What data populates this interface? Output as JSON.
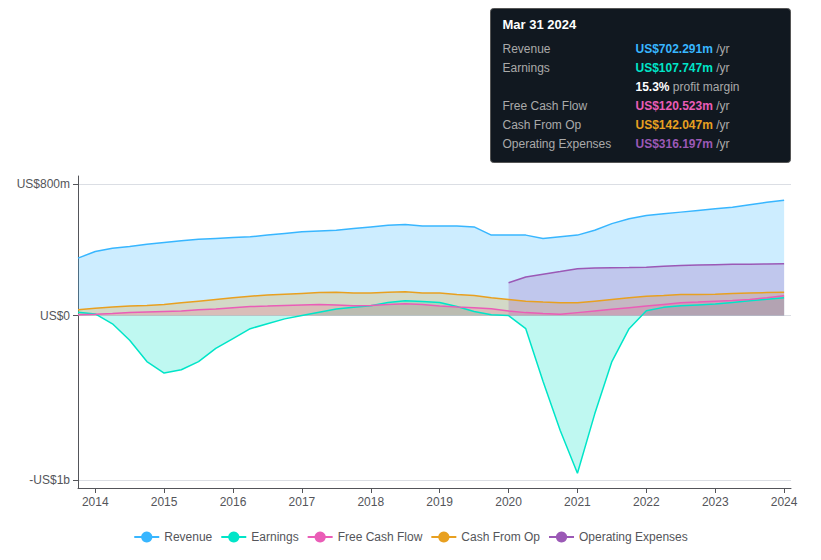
{
  "chart_data": {
    "type": "area",
    "x": [
      2013.75,
      2014.0,
      2014.25,
      2014.5,
      2014.75,
      2015.0,
      2015.25,
      2015.5,
      2015.75,
      2016.0,
      2016.25,
      2016.5,
      2016.75,
      2017.0,
      2017.25,
      2017.5,
      2017.75,
      2018.0,
      2018.25,
      2018.5,
      2018.75,
      2019.0,
      2019.25,
      2019.5,
      2019.75,
      2020.0,
      2020.25,
      2020.5,
      2020.75,
      2021.0,
      2021.25,
      2021.5,
      2021.75,
      2022.0,
      2022.25,
      2022.5,
      2022.75,
      2023.0,
      2023.25,
      2023.5,
      2023.75,
      2024.0
    ],
    "series": [
      {
        "name": "Revenue",
        "color": "#38b6ff",
        "values": [
          350,
          390,
          410,
          420,
          435,
          445,
          455,
          465,
          470,
          475,
          480,
          490,
          500,
          510,
          515,
          520,
          530,
          540,
          550,
          555,
          545,
          545,
          545,
          540,
          490,
          490,
          490,
          470,
          480,
          490,
          520,
          560,
          590,
          610,
          620,
          630,
          640,
          650,
          660,
          675,
          690,
          702
        ]
      },
      {
        "name": "Earnings",
        "color": "#00e5c8",
        "values": [
          20,
          10,
          -50,
          -150,
          -280,
          -350,
          -330,
          -280,
          -200,
          -140,
          -80,
          -50,
          -20,
          0,
          20,
          40,
          50,
          60,
          80,
          90,
          85,
          80,
          55,
          25,
          5,
          0,
          -80,
          -400,
          -700,
          -960,
          -600,
          -280,
          -80,
          30,
          50,
          60,
          65,
          70,
          80,
          90,
          100,
          108
        ]
      },
      {
        "name": "Free Cash Flow",
        "color": "#ea5db7",
        "values": [
          5,
          8,
          12,
          18,
          22,
          25,
          28,
          35,
          40,
          48,
          55,
          58,
          62,
          65,
          68,
          65,
          60,
          62,
          68,
          72,
          68,
          58,
          52,
          48,
          42,
          28,
          18,
          12,
          8,
          18,
          28,
          38,
          48,
          58,
          68,
          78,
          82,
          88,
          92,
          98,
          108,
          121
        ]
      },
      {
        "name": "Cash From Op",
        "color": "#e8a020",
        "values": [
          35,
          45,
          52,
          58,
          62,
          68,
          78,
          88,
          98,
          108,
          118,
          125,
          130,
          135,
          140,
          142,
          138,
          138,
          142,
          145,
          138,
          138,
          128,
          122,
          108,
          98,
          88,
          82,
          78,
          78,
          88,
          98,
          108,
          118,
          122,
          128,
          128,
          130,
          135,
          138,
          140,
          142
        ]
      },
      {
        "name": "Operating Expenses",
        "color": "#9b59b6",
        "values": [
          null,
          null,
          null,
          null,
          null,
          null,
          null,
          null,
          null,
          null,
          null,
          null,
          null,
          null,
          null,
          null,
          null,
          null,
          null,
          null,
          null,
          null,
          null,
          null,
          null,
          200,
          235,
          252,
          268,
          285,
          290,
          292,
          293,
          295,
          300,
          305,
          308,
          310,
          312,
          313,
          314,
          316
        ]
      }
    ],
    "xlim": [
      2013.75,
      2024.1
    ],
    "xticks": [
      2014,
      2015,
      2016,
      2017,
      2018,
      2019,
      2020,
      2021,
      2022,
      2023,
      2024
    ],
    "ylim": [
      -1050,
      850
    ],
    "yticks": [
      {
        "value": 800,
        "label": "US$800m"
      },
      {
        "value": 0,
        "label": "US$0"
      },
      {
        "value": -1000,
        "label": "-US$1b"
      }
    ],
    "grid": true,
    "legend": "bottom",
    "annotations": [
      {
        "text": "Mar 31 2024"
      },
      {
        "label": "Revenue",
        "text": "US$702.291m",
        "suffix": " /yr",
        "color": "#38b6ff"
      },
      {
        "label": "Earnings",
        "text": "US$107.747m",
        "suffix": " /yr",
        "color": "#00e5c8"
      },
      {
        "text": "15.3%",
        "suffix": " profit margin",
        "color": "#ffffff"
      },
      {
        "label": "Free Cash Flow",
        "text": "US$120.523m",
        "suffix": " /yr",
        "color": "#ea5db7"
      },
      {
        "label": "Cash From Op",
        "text": "US$142.047m",
        "suffix": " /yr",
        "color": "#e8a020"
      },
      {
        "label": "Operating Expenses",
        "text": "US$316.197m",
        "suffix": " /yr",
        "color": "#9b59b6"
      }
    ]
  }
}
